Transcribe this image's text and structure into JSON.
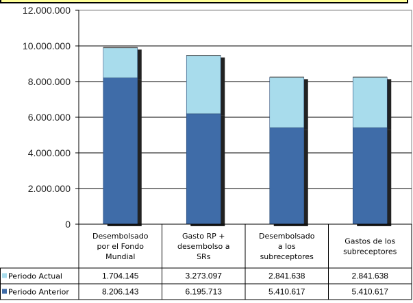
{
  "chart_data": {
    "type": "bar",
    "stacked": true,
    "categories": [
      [
        "Desembolsado",
        "por el Fondo",
        "Mundial"
      ],
      [
        "Gasto RP +",
        "desembolso a",
        "SRs"
      ],
      [
        "Desembolsado",
        "a los",
        "subreceptores"
      ],
      [
        "Gastos de los",
        "subreceptores"
      ]
    ],
    "series": [
      {
        "name": "Periodo Anterior",
        "values": [
          8206143,
          6195713,
          5410617,
          5410617
        ],
        "labels": [
          "8.206.143",
          "6.195.713",
          "5.410.617",
          "5.410.617"
        ],
        "color": "#3f6ca8"
      },
      {
        "name": "Periodo Actual",
        "values": [
          1704145,
          3273097,
          2841638,
          2841638
        ],
        "labels": [
          "1.704.145",
          "3.273.097",
          "2.841.638",
          "2.841.638"
        ],
        "color": "#a8dcec"
      }
    ],
    "ylim": [
      0,
      12000000
    ],
    "yticks": [
      0,
      2000000,
      4000000,
      6000000,
      8000000,
      10000000,
      12000000
    ],
    "ytick_labels": [
      "0",
      "2.000.000",
      "4.000.000",
      "6.000.000",
      "8.000.000",
      "10.000.000",
      "12.000.000"
    ],
    "grid": true,
    "legend": "data-table"
  }
}
